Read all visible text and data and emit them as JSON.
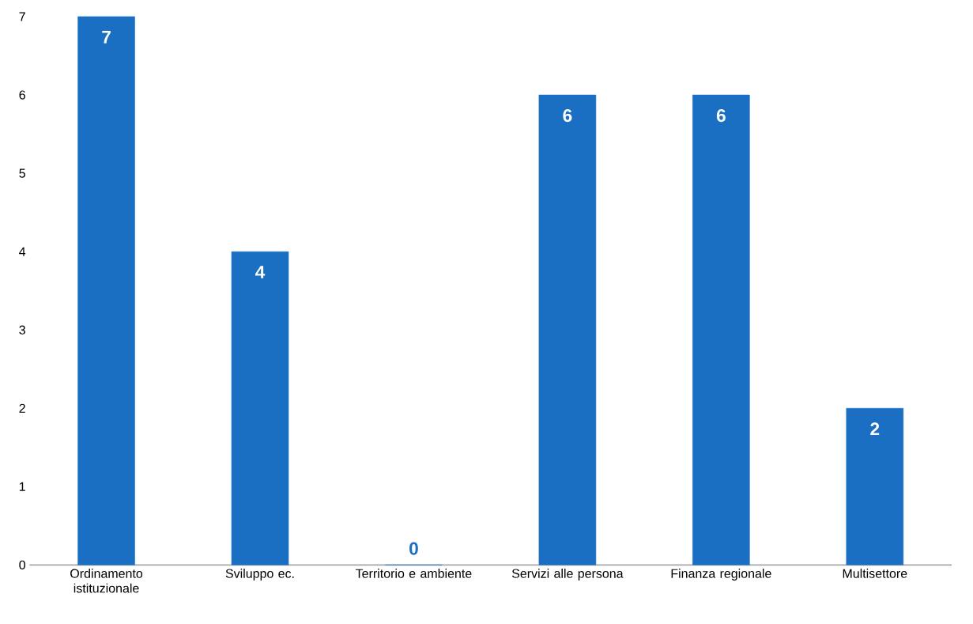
{
  "chart_data": {
    "type": "bar",
    "categories": [
      "Ordinamento istituzionale",
      "Sviluppo ec.",
      "Territorio e ambiente",
      "Servizi alle persona",
      "Finanza regionale",
      "Multisettore"
    ],
    "values": [
      7,
      4,
      0,
      6,
      6,
      2
    ],
    "color": "#1a6fc2",
    "ylim": [
      0,
      7
    ],
    "yticks": [
      0,
      1,
      2,
      3,
      4,
      5,
      6,
      7
    ],
    "data_labels": true
  }
}
